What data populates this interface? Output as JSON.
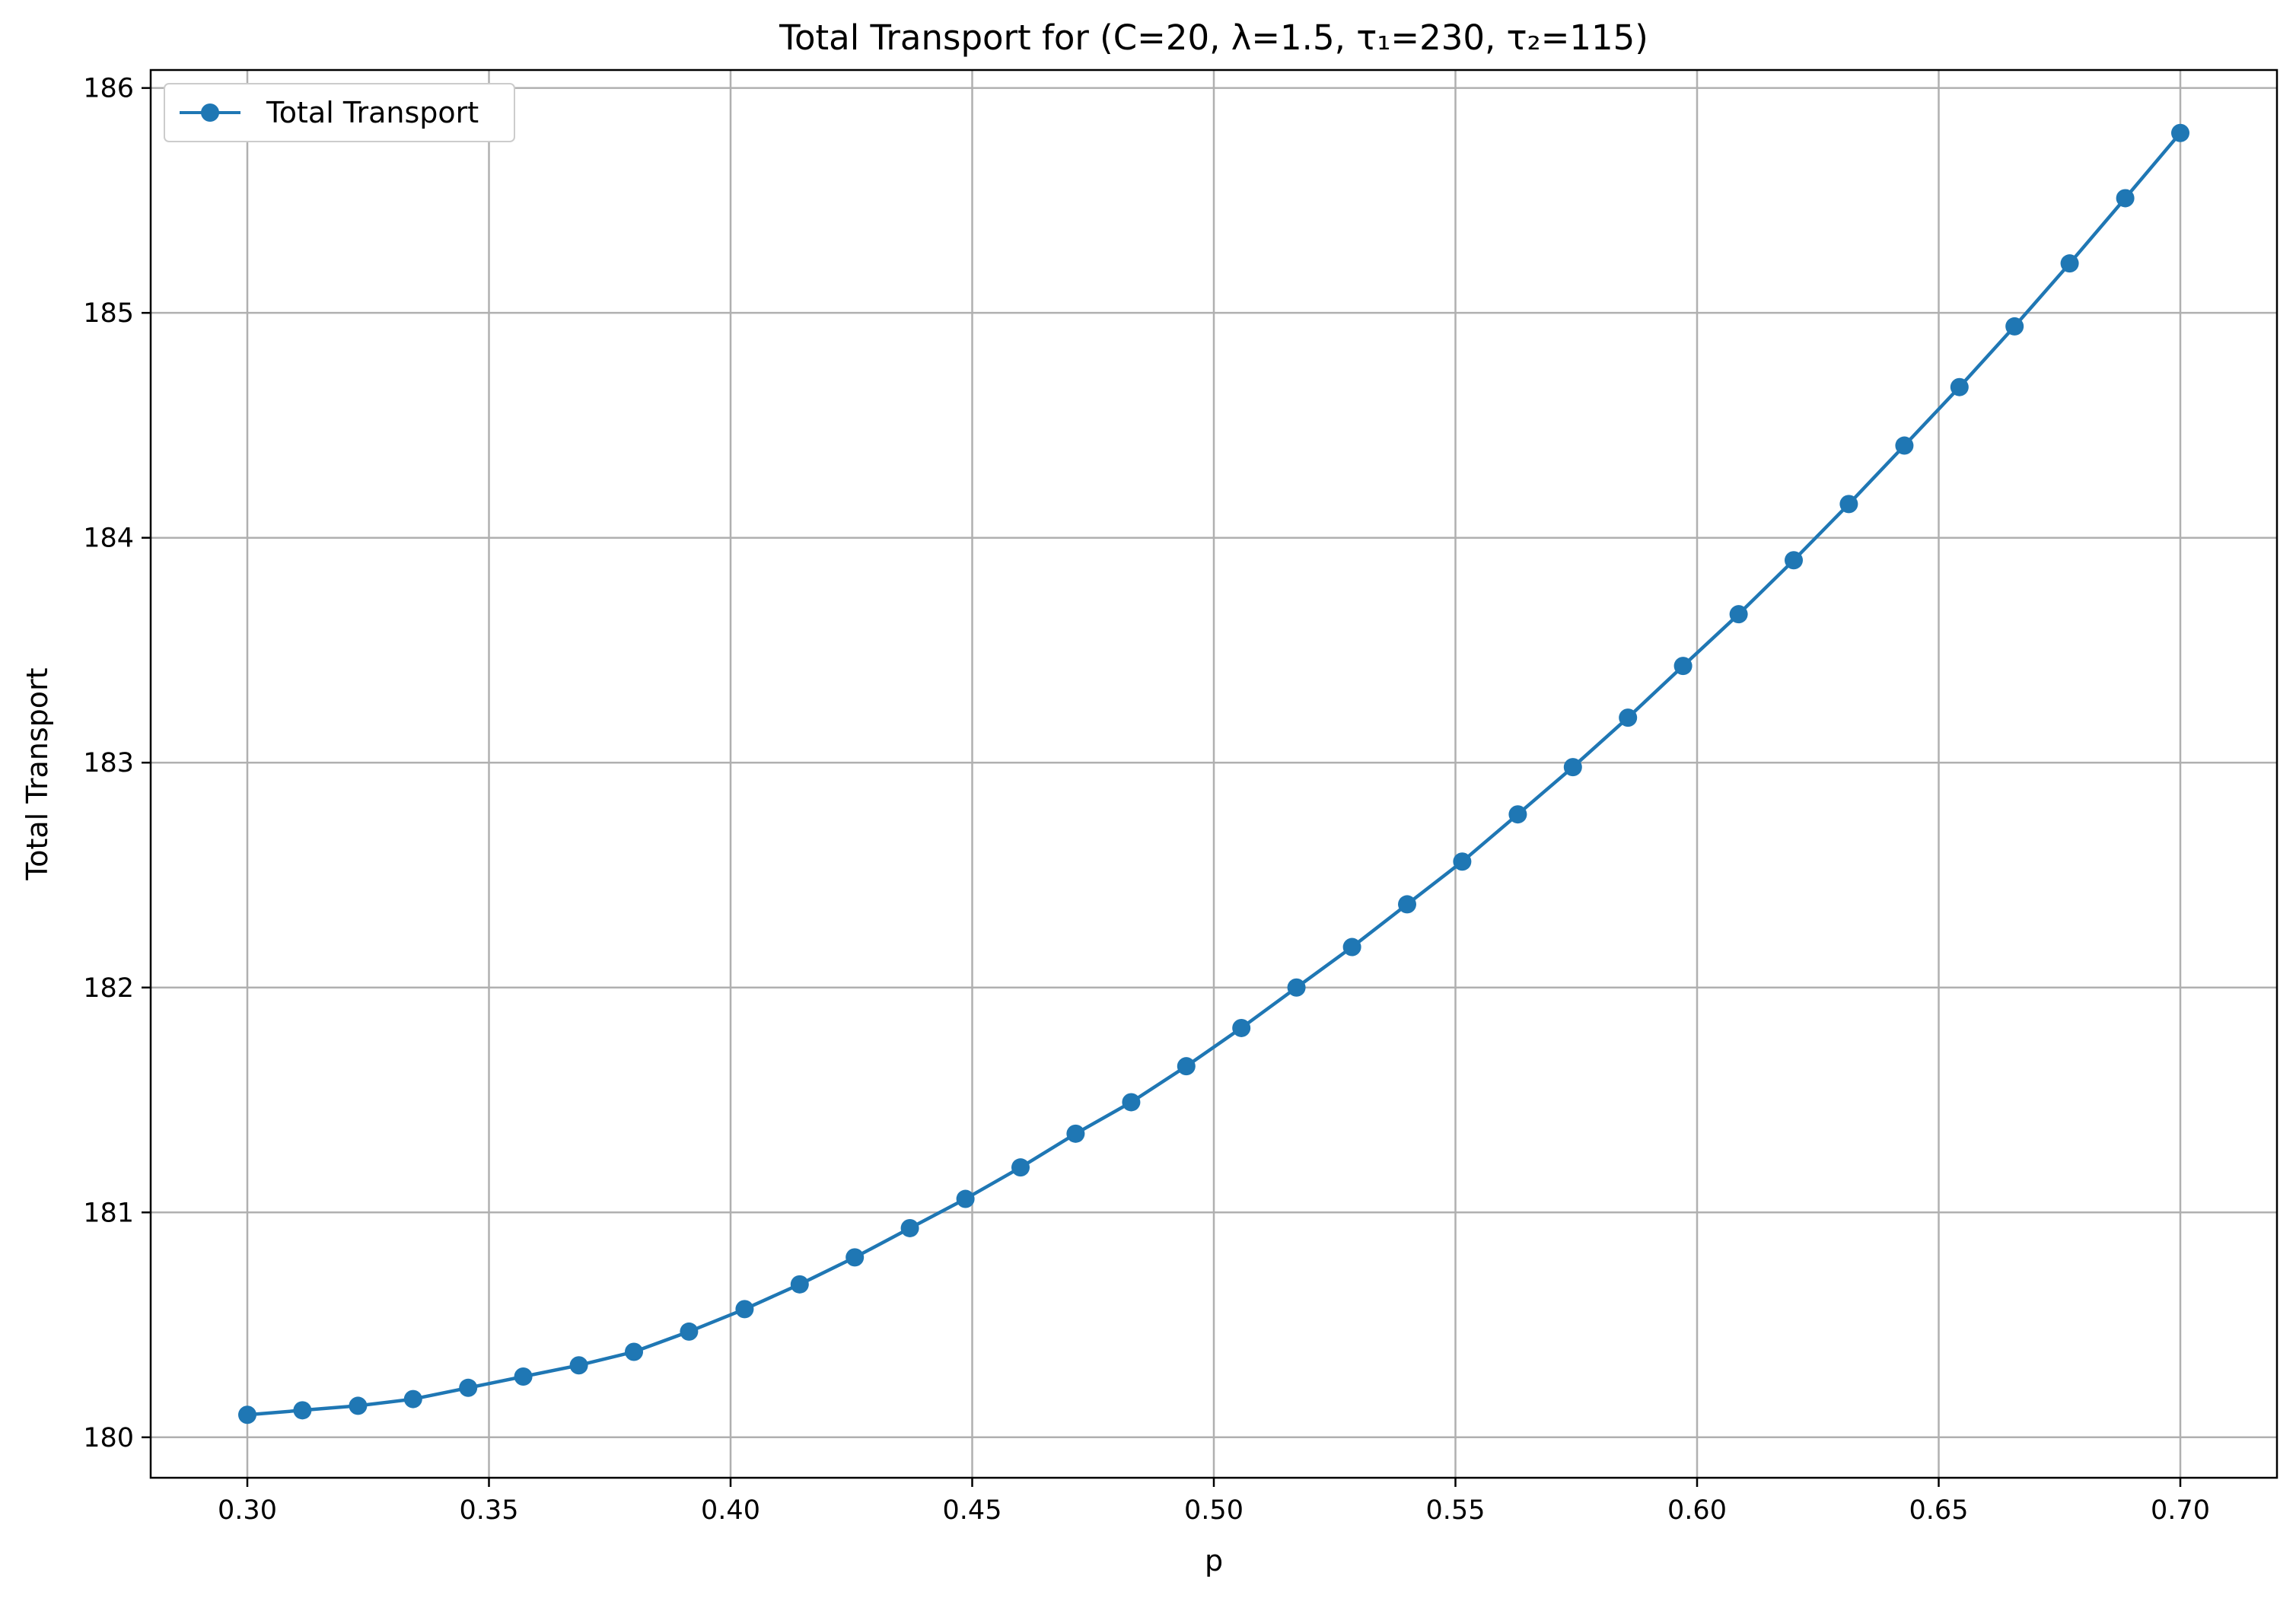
{
  "chart_data": {
    "type": "line",
    "title": "Total Transport for (C=20, λ=1.5, τ₁=230, τ₂=115)",
    "xlabel": "p",
    "ylabel": "Total Transport",
    "xlim": [
      0.28,
      0.72
    ],
    "ylim": [
      179.82,
      186.08
    ],
    "xticks": [
      0.3,
      0.35,
      0.4,
      0.45,
      0.5,
      0.55,
      0.6,
      0.65,
      0.7
    ],
    "xtick_labels": [
      "0.30",
      "0.35",
      "0.40",
      "0.45",
      "0.50",
      "0.55",
      "0.60",
      "0.65",
      "0.70"
    ],
    "yticks": [
      180,
      181,
      182,
      183,
      184,
      185,
      186
    ],
    "ytick_labels": [
      "180",
      "181",
      "182",
      "183",
      "184",
      "185",
      "186"
    ],
    "grid": true,
    "legend_position": "top-left",
    "series": [
      {
        "name": "Total Transport",
        "color": "#1f77b4",
        "marker": "circle",
        "x": [
          0.3,
          0.3114,
          0.3229,
          0.3343,
          0.3457,
          0.3571,
          0.3686,
          0.38,
          0.3914,
          0.4029,
          0.4143,
          0.4257,
          0.4371,
          0.4486,
          0.46,
          0.4714,
          0.4829,
          0.4943,
          0.5057,
          0.5171,
          0.5286,
          0.54,
          0.5514,
          0.5629,
          0.5743,
          0.5857,
          0.5971,
          0.6086,
          0.62,
          0.6314,
          0.6429,
          0.6543,
          0.6657,
          0.6771,
          0.6886,
          0.7
        ],
        "y": [
          180.1,
          180.12,
          180.14,
          180.17,
          180.22,
          180.27,
          180.32,
          180.38,
          180.47,
          180.57,
          180.68,
          180.8,
          180.93,
          181.06,
          181.2,
          181.35,
          181.49,
          181.65,
          181.82,
          182.0,
          182.18,
          182.37,
          182.56,
          182.77,
          182.98,
          183.2,
          183.43,
          183.66,
          183.9,
          184.15,
          184.41,
          184.67,
          184.94,
          185.22,
          185.51,
          185.8
        ]
      }
    ]
  }
}
